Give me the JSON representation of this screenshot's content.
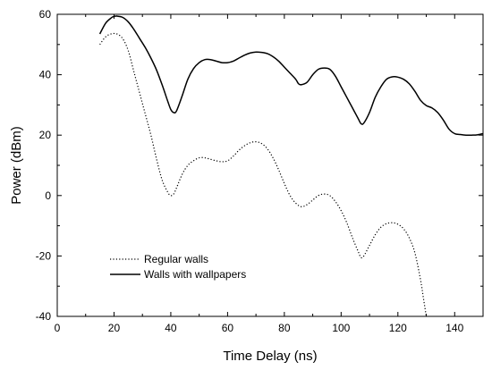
{
  "chart_data": {
    "type": "line",
    "title": "",
    "xlabel": "Time Delay (ns)",
    "ylabel": "Power (dBm)",
    "xlim": [
      0,
      150
    ],
    "ylim": [
      -40,
      60
    ],
    "xticks": [
      "0",
      "20",
      "40",
      "60",
      "80",
      "100",
      "120",
      "140"
    ],
    "yticks": [
      "-40",
      "-20",
      "0",
      "20",
      "40",
      "60"
    ],
    "grid": false,
    "legend_position": "bottom-left",
    "series": [
      {
        "name": "Regular walls",
        "style": "dotted",
        "color": "#000000",
        "x": [
          15,
          17,
          19,
          21,
          23,
          25,
          27,
          29,
          31,
          33,
          35,
          37,
          39,
          40,
          41,
          42,
          44,
          46,
          48,
          50,
          52,
          54,
          56,
          58,
          60,
          62,
          64,
          66,
          68,
          70,
          72,
          74,
          76,
          78,
          80,
          82,
          84,
          86,
          88,
          90,
          92,
          94,
          96,
          98,
          100,
          102,
          104,
          106,
          107,
          108,
          110,
          112,
          114,
          116,
          118,
          120,
          122,
          124,
          126,
          128,
          129,
          130
        ],
        "y": [
          50,
          52.5,
          53.5,
          53.5,
          52,
          48,
          41,
          34,
          27,
          20,
          12,
          5,
          1,
          0,
          0.5,
          2.5,
          7,
          10,
          11.5,
          12.5,
          12.5,
          12,
          11.5,
          11.2,
          11.5,
          13,
          15,
          16.5,
          17.5,
          17.8,
          17.2,
          15.5,
          12.5,
          8.5,
          4,
          0,
          -2.5,
          -3.7,
          -3,
          -1.5,
          0,
          0.5,
          0,
          -2,
          -5,
          -9,
          -14,
          -18.5,
          -20.5,
          -20,
          -16.5,
          -13,
          -10.5,
          -9.3,
          -9,
          -9.5,
          -11,
          -14,
          -19,
          -28,
          -34,
          -40
        ]
      },
      {
        "name": "Walls with wallpapers",
        "style": "solid",
        "color": "#000000",
        "x": [
          15,
          17,
          19,
          20,
          21,
          23,
          25,
          27,
          29,
          31,
          33,
          35,
          37,
          39,
          40,
          41,
          42,
          44,
          46,
          48,
          50,
          52,
          54,
          56,
          58,
          60,
          62,
          64,
          66,
          68,
          70,
          72,
          74,
          76,
          78,
          80,
          82,
          84,
          85,
          86,
          88,
          90,
          92,
          94,
          96,
          98,
          100,
          102,
          104,
          106,
          107,
          108,
          110,
          112,
          114,
          116,
          118,
          120,
          122,
          124,
          126,
          128,
          130,
          132,
          134,
          136,
          138,
          140,
          142,
          144,
          146,
          148,
          150
        ],
        "y": [
          53.5,
          57,
          58.8,
          59.3,
          59.4,
          59,
          57.5,
          55,
          52,
          49,
          45.5,
          41.5,
          36.5,
          31,
          28.5,
          27.5,
          28,
          33,
          38.5,
          42,
          44,
          45,
          45,
          44.5,
          44,
          44,
          44.5,
          45.5,
          46.5,
          47.2,
          47.5,
          47.4,
          47,
          46,
          44.5,
          42.5,
          40.5,
          38.5,
          37,
          36.7,
          37.5,
          40,
          41.8,
          42.2,
          41.8,
          39.5,
          36,
          32.5,
          29,
          25.5,
          23.8,
          24,
          27.5,
          32.5,
          36,
          38.5,
          39.3,
          39.2,
          38.5,
          37,
          34.5,
          31.5,
          29.8,
          29,
          27.5,
          25,
          22,
          20.5,
          20.2,
          20,
          20,
          20.1,
          20.5
        ]
      }
    ]
  }
}
